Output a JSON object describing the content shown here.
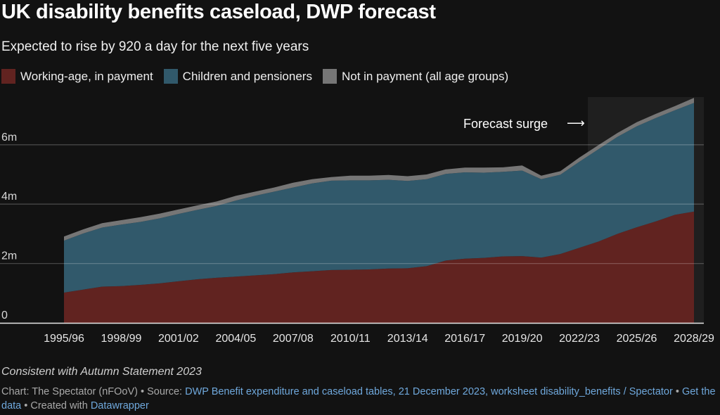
{
  "title": "UK disability benefits caseload, DWP forecast",
  "subtitle": "Expected to rise by 920 a day for the next five years",
  "legend": [
    {
      "label": "Working-age, in payment",
      "color": "#612320"
    },
    {
      "label": "Children and pensioners",
      "color": "#31596b"
    },
    {
      "label": "Not in payment (all age groups)",
      "color": "#767676"
    }
  ],
  "colors": {
    "background": "#121212",
    "working_age": "#612320",
    "children_pensioners": "#31596b",
    "not_in_payment": "#767676",
    "link": "#6fa8dc"
  },
  "chart_data": {
    "type": "area",
    "stacked": true,
    "title": "UK disability benefits caseload, DWP forecast",
    "subtitle": "Expected to rise by 920 a day for the next five years",
    "xlabel": "",
    "ylabel": "",
    "units": "millions",
    "ylim": [
      0,
      7.8
    ],
    "yticks": [
      0,
      2,
      4,
      6
    ],
    "ytick_labels": [
      "0",
      "2m",
      "4m",
      "6m"
    ],
    "grid": true,
    "legend_position": "top-left",
    "x": [
      "1995/96",
      "1996/97",
      "1997/98",
      "1998/99",
      "1999/00",
      "2000/01",
      "2001/02",
      "2002/03",
      "2003/04",
      "2004/05",
      "2005/06",
      "2006/07",
      "2007/08",
      "2008/09",
      "2009/10",
      "2010/11",
      "2011/12",
      "2012/13",
      "2013/14",
      "2014/15",
      "2015/16",
      "2016/17",
      "2017/18",
      "2018/19",
      "2019/20",
      "2020/21",
      "2021/22",
      "2022/23",
      "2023/24",
      "2024/25",
      "2025/26",
      "2026/27",
      "2027/28",
      "2028/29"
    ],
    "xtick_labels": [
      "1995/96",
      "1998/99",
      "2001/02",
      "2004/05",
      "2007/08",
      "2010/11",
      "2013/14",
      "2016/17",
      "2019/20",
      "2022/23",
      "2025/26",
      "2028/29"
    ],
    "series": [
      {
        "name": "Working-age, in payment",
        "color": "#612320",
        "values": [
          1.02,
          1.12,
          1.22,
          1.24,
          1.28,
          1.33,
          1.4,
          1.47,
          1.52,
          1.56,
          1.6,
          1.64,
          1.7,
          1.74,
          1.78,
          1.79,
          1.8,
          1.83,
          1.84,
          1.91,
          2.1,
          2.16,
          2.19,
          2.24,
          2.25,
          2.2,
          2.32,
          2.53,
          2.74,
          3.0,
          3.22,
          3.42,
          3.64,
          3.75
        ]
      },
      {
        "name": "Children and pensioners",
        "color": "#31596b",
        "values": [
          1.75,
          1.89,
          1.99,
          2.07,
          2.12,
          2.19,
          2.27,
          2.34,
          2.42,
          2.56,
          2.68,
          2.78,
          2.86,
          2.96,
          3.01,
          3.01,
          3.0,
          2.99,
          2.94,
          2.93,
          2.92,
          2.91,
          2.87,
          2.85,
          2.88,
          2.64,
          2.67,
          2.9,
          3.11,
          3.27,
          3.4,
          3.48,
          3.52,
          3.66
        ]
      },
      {
        "name": "Not in payment (all age groups)",
        "color": "#767676",
        "values": [
          0.14,
          0.14,
          0.15,
          0.15,
          0.16,
          0.16,
          0.15,
          0.15,
          0.15,
          0.16,
          0.14,
          0.14,
          0.16,
          0.14,
          0.12,
          0.16,
          0.16,
          0.16,
          0.16,
          0.16,
          0.15,
          0.16,
          0.17,
          0.15,
          0.17,
          0.12,
          0.12,
          0.14,
          0.14,
          0.13,
          0.14,
          0.14,
          0.14,
          0.17
        ]
      }
    ],
    "forecast_region": {
      "from": "2022/23",
      "to": "2028/29"
    },
    "annotations": [
      {
        "text": "Forecast surge",
        "arrow": "right"
      }
    ]
  },
  "annotation": {
    "text": "Forecast surge",
    "arrow": "⟶"
  },
  "notes": "Consistent with Autumn Statement 2023",
  "footer": {
    "chart_by": "Chart: The Spectator (nFOoV)",
    "sep": " • ",
    "source_label": "Source: ",
    "source_link": "DWP Benefit expenditure and caseload tables, 21 December 2023, worksheet disability_benefits / Spectator",
    "get_data": "Get the data",
    "created_with": "Created with ",
    "datawrapper": "Datawrapper"
  }
}
